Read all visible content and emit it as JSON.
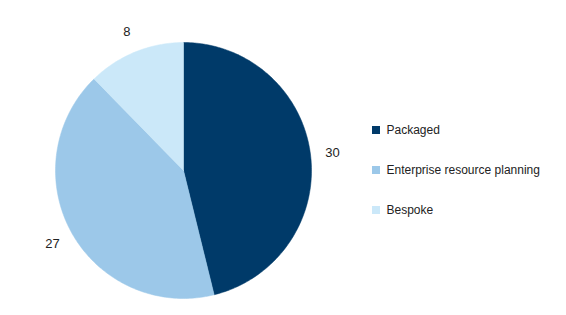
{
  "chart_data": {
    "type": "pie",
    "categories": [
      "Packaged",
      "Enterprise resource planning",
      "Bespoke"
    ],
    "values": [
      30,
      27,
      8
    ],
    "colors": [
      "#003a69",
      "#9cc8e9",
      "#cbe8f9"
    ],
    "data_labels": true,
    "legend": "right"
  }
}
